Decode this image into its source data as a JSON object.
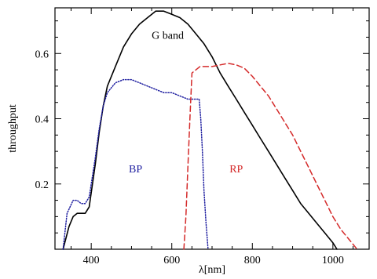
{
  "chart_data": {
    "type": "line",
    "xlabel": "λ[nm]",
    "ylabel": "throughput",
    "xlim": [
      310,
      1090
    ],
    "ylim": [
      0,
      0.74
    ],
    "xticks": [
      400,
      600,
      800,
      1000
    ],
    "xtick_labels": [
      "400",
      "600",
      "800",
      "1000"
    ],
    "yticks": [
      0.2,
      0.4,
      0.6
    ],
    "ytick_labels": [
      "0.2",
      "0.4",
      "0.6"
    ],
    "grid": false,
    "legend": "none",
    "series": [
      {
        "name": "G band",
        "color": "#000000",
        "style": "solid",
        "x": [
          330,
          345,
          355,
          365,
          375,
          385,
          395,
          410,
          420,
          430,
          440,
          460,
          480,
          500,
          520,
          540,
          560,
          580,
          600,
          620,
          640,
          660,
          680,
          700,
          720,
          740,
          760,
          780,
          800,
          820,
          840,
          860,
          880,
          900,
          920,
          940,
          960,
          980,
          1000,
          1010
        ],
        "y": [
          0.0,
          0.07,
          0.1,
          0.11,
          0.11,
          0.11,
          0.13,
          0.26,
          0.36,
          0.44,
          0.5,
          0.56,
          0.62,
          0.66,
          0.69,
          0.71,
          0.73,
          0.73,
          0.72,
          0.71,
          0.69,
          0.66,
          0.63,
          0.59,
          0.54,
          0.5,
          0.46,
          0.42,
          0.38,
          0.34,
          0.3,
          0.26,
          0.22,
          0.18,
          0.14,
          0.11,
          0.08,
          0.05,
          0.02,
          0.0
        ]
      },
      {
        "name": "BP",
        "color": "#1f1fa0",
        "style": "dotted",
        "x": [
          330,
          340,
          355,
          365,
          375,
          385,
          395,
          410,
          420,
          430,
          440,
          460,
          480,
          500,
          520,
          540,
          560,
          580,
          600,
          620,
          640,
          660,
          668,
          672,
          676,
          680,
          685,
          690
        ],
        "y": [
          0.0,
          0.11,
          0.15,
          0.15,
          0.14,
          0.14,
          0.16,
          0.28,
          0.37,
          0.44,
          0.48,
          0.51,
          0.52,
          0.52,
          0.51,
          0.5,
          0.49,
          0.48,
          0.48,
          0.47,
          0.46,
          0.46,
          0.46,
          0.4,
          0.3,
          0.18,
          0.08,
          0.0
        ]
      },
      {
        "name": "RP",
        "color": "#d42a2a",
        "style": "dashed",
        "x": [
          630,
          635,
          640,
          645,
          650,
          670,
          700,
          720,
          740,
          760,
          780,
          800,
          820,
          840,
          860,
          880,
          900,
          920,
          940,
          960,
          980,
          1000,
          1020,
          1040,
          1060
        ],
        "y": [
          0.0,
          0.1,
          0.25,
          0.4,
          0.54,
          0.56,
          0.56,
          0.565,
          0.57,
          0.565,
          0.555,
          0.53,
          0.5,
          0.47,
          0.43,
          0.39,
          0.35,
          0.3,
          0.25,
          0.2,
          0.15,
          0.1,
          0.06,
          0.03,
          0.0
        ]
      }
    ],
    "annotations": [
      {
        "text": "G band",
        "x": 590,
        "y": 0.645,
        "color": "#000000"
      },
      {
        "text": "BP",
        "x": 510,
        "y": 0.235,
        "color": "#1f1fa0"
      },
      {
        "text": "RP",
        "x": 760,
        "y": 0.235,
        "color": "#d42a2a"
      }
    ]
  }
}
